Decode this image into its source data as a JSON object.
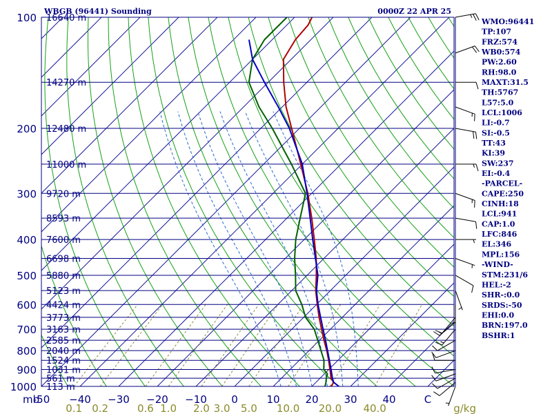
{
  "header": {
    "station": "WBGB (96441) Sounding",
    "time": "0000Z 22 APR 25"
  },
  "colors": {
    "axis": "#000080",
    "isotherm": "#1b1b9a",
    "dry_adiabat": "#15a015",
    "moist_adiabat": "#2a6acc",
    "mixing_ratio": "#8a8a40",
    "temperature": "#b00000",
    "dewpoint": "#006000",
    "parcel": "#0000c0",
    "wind": "#000000"
  },
  "chart_data": {
    "type": "line",
    "title": "WBGB (96441) Sounding",
    "subtitle": "0000Z 22 APR 25",
    "xlabel": "",
    "ylabel": "",
    "pressure_unit": "mb",
    "mixing_ratio_unit": "g/kg",
    "pressure_levels": [
      100,
      200,
      300,
      400,
      500,
      600,
      700,
      800,
      900,
      1000
    ],
    "pressure_labels": [
      "100",
      "200",
      "300",
      "400",
      "500",
      "600",
      "700",
      "800",
      "900",
      "1000"
    ],
    "temperature_ticks": [
      "-50",
      "−40",
      "−30",
      "−20",
      "−10",
      "0",
      "10",
      "20",
      "30",
      "40",
      "C"
    ],
    "mixing_ratio_labels": [
      "0.1",
      "0.2",
      "0.6",
      "1.0",
      "2.0",
      "3.0",
      "5.0",
      "10.0",
      "20.0",
      "40.0"
    ],
    "heights": [
      {
        "p": 100,
        "label": "16640 m"
      },
      {
        "p": 150,
        "label": "14270 m"
      },
      {
        "p": 200,
        "label": "12480 m"
      },
      {
        "p": 250,
        "label": "11000 m"
      },
      {
        "p": 300,
        "label": "9720 m"
      },
      {
        "p": 350,
        "label": "8593 m"
      },
      {
        "p": 400,
        "label": "7600 m"
      },
      {
        "p": 450,
        "label": "6698 m"
      },
      {
        "p": 500,
        "label": "5880 m"
      },
      {
        "p": 550,
        "label": "5123 m"
      },
      {
        "p": 600,
        "label": "4424 m"
      },
      {
        "p": 650,
        "label": "3773 m"
      },
      {
        "p": 700,
        "label": "3163 m"
      },
      {
        "p": 750,
        "label": "2585 m"
      },
      {
        "p": 800,
        "label": "2040 m"
      },
      {
        "p": 850,
        "label": "1524 m"
      },
      {
        "p": 900,
        "label": "1031 m"
      },
      {
        "p": 950,
        "label": "561 m"
      },
      {
        "p": 1000,
        "label": "113 m"
      }
    ],
    "series": [
      {
        "points": [
          [
            1005,
            24.0
          ],
          [
            1000,
            25.0
          ],
          [
            975,
            24.6
          ],
          [
            950,
            22.8
          ],
          [
            925,
            21.6
          ],
          [
            900,
            20.3
          ],
          [
            850,
            17.6
          ],
          [
            800,
            14.6
          ],
          [
            750,
            11.2
          ],
          [
            700,
            7.7
          ],
          [
            650,
            4.0
          ],
          [
            600,
            0.2
          ],
          [
            550,
            -3.8
          ],
          [
            500,
            -7.6
          ],
          [
            450,
            -12.0
          ],
          [
            400,
            -17.4
          ],
          [
            350,
            -23.6
          ],
          [
            300,
            -31.0
          ],
          [
            250,
            -40.4
          ],
          [
            200,
            -52.0
          ],
          [
            175,
            -59.0
          ],
          [
            150,
            -66.0
          ],
          [
            130,
            -72.0
          ],
          [
            115,
            -74.0
          ],
          [
            105,
            -74.5
          ],
          [
            100,
            -75.5
          ]
        ]
      },
      {
        "points": [
          [
            1005,
            23.2
          ],
          [
            1000,
            23.4
          ],
          [
            975,
            22.6
          ],
          [
            950,
            21.6
          ],
          [
            925,
            20.8
          ],
          [
            900,
            18.7
          ],
          [
            850,
            16.4
          ],
          [
            800,
            13.1
          ],
          [
            750,
            9.6
          ],
          [
            700,
            5.8
          ],
          [
            650,
            0.5
          ],
          [
            600,
            -3.8
          ],
          [
            550,
            -9.0
          ],
          [
            500,
            -13.0
          ],
          [
            450,
            -17.6
          ],
          [
            400,
            -22.2
          ],
          [
            350,
            -26.6
          ],
          [
            300,
            -31.6
          ],
          [
            250,
            -42.8
          ],
          [
            200,
            -57.0
          ],
          [
            175,
            -66.0
          ],
          [
            150,
            -75.0
          ],
          [
            130,
            -80.0
          ],
          [
            115,
            -82.0
          ],
          [
            100,
            -82.0
          ]
        ]
      },
      {
        "points": [
          [
            1000,
            27.0
          ],
          [
            975,
            24.6
          ],
          [
            950,
            23.2
          ],
          [
            925,
            21.9
          ],
          [
            900,
            20.6
          ],
          [
            850,
            17.8
          ],
          [
            800,
            14.8
          ],
          [
            750,
            11.6
          ],
          [
            700,
            8.1
          ],
          [
            650,
            4.4
          ],
          [
            600,
            0.4
          ],
          [
            550,
            -3.6
          ],
          [
            500,
            -7.2
          ],
          [
            450,
            -12.2
          ],
          [
            400,
            -17.8
          ],
          [
            350,
            -24.0
          ],
          [
            300,
            -31.2
          ],
          [
            250,
            -40.0
          ],
          [
            200,
            -52.6
          ],
          [
            175,
            -61.0
          ],
          [
            150,
            -71.0
          ],
          [
            130,
            -80.0
          ],
          [
            115,
            -86.0
          ]
        ]
      }
    ],
    "wind_barbs": [
      {
        "p": 1000,
        "dir": 200,
        "spd": 5
      },
      {
        "p": 975,
        "dir": 230,
        "spd": 10
      },
      {
        "p": 950,
        "dir": 240,
        "spd": 10
      },
      {
        "p": 925,
        "dir": 250,
        "spd": 10
      },
      {
        "p": 900,
        "dir": 260,
        "spd": 10
      },
      {
        "p": 850,
        "dir": 270,
        "spd": 10
      },
      {
        "p": 800,
        "dir": 250,
        "spd": 10
      },
      {
        "p": 750,
        "dir": 240,
        "spd": 10
      },
      {
        "p": 700,
        "dir": 220,
        "spd": 15
      },
      {
        "p": 670,
        "dir": 230,
        "spd": 15
      },
      {
        "p": 650,
        "dir": 220,
        "spd": 10
      },
      {
        "p": 600,
        "dir": 180,
        "spd": 5
      },
      {
        "p": 550,
        "dir": 160,
        "spd": 5
      },
      {
        "p": 500,
        "dir": 120,
        "spd": 10
      },
      {
        "p": 450,
        "dir": 110,
        "spd": 5
      },
      {
        "p": 400,
        "dir": 90,
        "spd": 5
      },
      {
        "p": 350,
        "dir": 100,
        "spd": 10
      },
      {
        "p": 300,
        "dir": 110,
        "spd": 15
      },
      {
        "p": 250,
        "dir": 90,
        "spd": 15
      },
      {
        "p": 200,
        "dir": 100,
        "spd": 20
      },
      {
        "p": 175,
        "dir": 110,
        "spd": 15
      },
      {
        "p": 150,
        "dir": 90,
        "spd": 10
      },
      {
        "p": 125,
        "dir": 70,
        "spd": 20
      },
      {
        "p": 100,
        "dir": 80,
        "spd": 25
      }
    ]
  },
  "indices": [
    "WMO:96441",
    "TP:107",
    "FRZ:574",
    "WB0:574",
    "PW:2.60",
    "RH:98.0",
    "MAXT:31.5",
    "TH:5767",
    "L57:5.0",
    "LCL:1006",
    "LI:-0.7",
    "SI:-0.5",
    "TT:43",
    "KI:39",
    "SW:237",
    "EI:-0.4",
    "-PARCEL-",
    "CAPE:250",
    "CINH:18",
    "LCL:941",
    "CAP:1.0",
    "LFC:846",
    "EL:346",
    "MPL:156",
    "-WIND-",
    "STM:231/6",
    "HEL:-2",
    "SHR-:0.0",
    "SRDS:-50",
    "EHI:0.0",
    "BRN:197.0",
    "BSHR:1"
  ]
}
